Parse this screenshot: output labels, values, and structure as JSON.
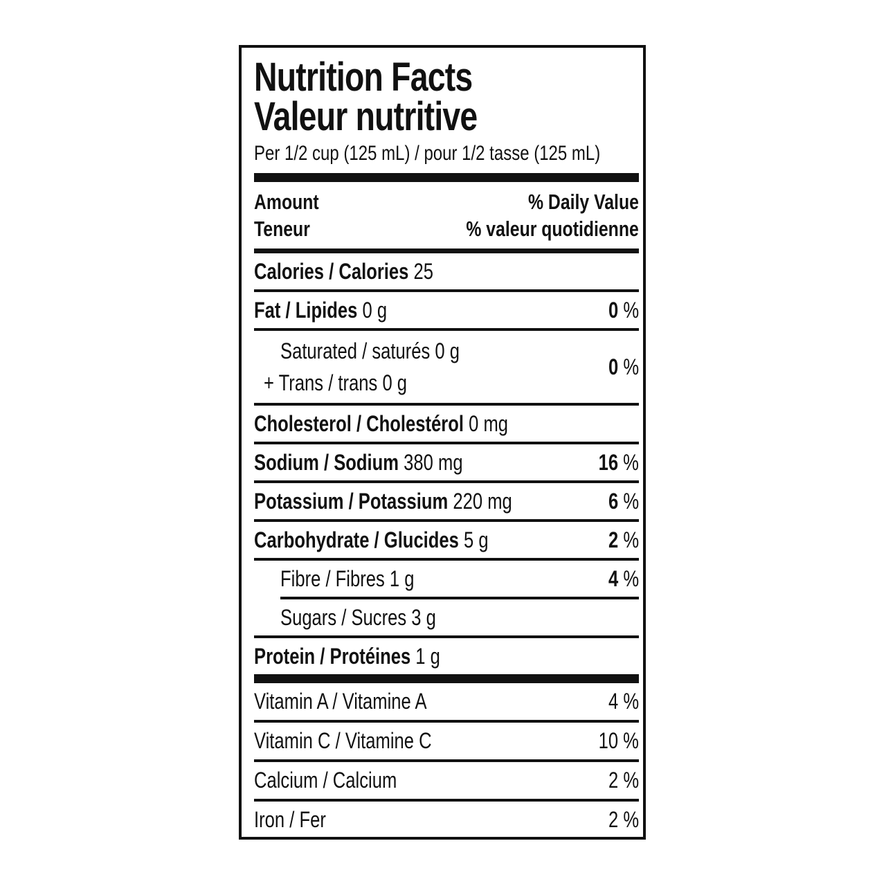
{
  "label": {
    "title_en": "Nutrition Facts",
    "title_fr": "Valeur nutritive",
    "serving_line": "Per 1/2 cup (125 mL) / pour 1/2 tasse (125 mL)",
    "columns": {
      "amount_en": "Amount",
      "amount_fr": "Teneur",
      "daily_value_en": "% Daily Value",
      "daily_value_fr": "% valeur quotidienne"
    },
    "percent_sign": "%",
    "nutrients": [
      {
        "name": "Calories / Calories",
        "amount": "25",
        "bold": true,
        "indent": false,
        "pct": null,
        "sep_after": "thin"
      },
      {
        "name": "Fat / Lipides",
        "amount": "0 g",
        "bold": true,
        "indent": false,
        "pct": "0",
        "pct_bold": true,
        "sep_after": "thin"
      },
      {
        "lines": [
          "Saturated / saturés 0 g",
          "+ Trans / trans 0 g"
        ],
        "bold": false,
        "indent": true,
        "pct": "0",
        "pct_bold": true,
        "sep_after": "thin"
      },
      {
        "name": "Cholesterol / Cholestérol",
        "amount": "0 mg",
        "bold": true,
        "indent": false,
        "pct": null,
        "sep_after": "thin"
      },
      {
        "name": "Sodium / Sodium",
        "amount": "380 mg",
        "bold": true,
        "indent": false,
        "pct": "16",
        "pct_bold": true,
        "sep_after": "thin"
      },
      {
        "name": "Potassium / Potassium",
        "amount": "220 mg",
        "bold": true,
        "indent": false,
        "pct": "6",
        "pct_bold": true,
        "sep_after": "thin"
      },
      {
        "name": "Carbohydrate / Glucides",
        "amount": "5 g",
        "bold": true,
        "indent": false,
        "pct": "2",
        "pct_bold": true,
        "sep_after": "thin"
      },
      {
        "name": "Fibre / Fibres",
        "amount": "1 g",
        "bold": false,
        "indent": true,
        "pct": "4",
        "pct_bold": true,
        "sep_after": "thin-indent"
      },
      {
        "name": "Sugars / Sucres",
        "amount": "3 g",
        "bold": false,
        "indent": true,
        "pct": null,
        "sep_after": "thin"
      },
      {
        "name": "Protein / Protéines",
        "amount": "1 g",
        "bold": true,
        "indent": false,
        "pct": null,
        "sep_after": "thick"
      }
    ],
    "micronutrients": [
      {
        "name": "Vitamin A / Vitamine A",
        "pct": "4"
      },
      {
        "name": "Vitamin C / Vitamine C",
        "pct": "10"
      },
      {
        "name": "Calcium / Calcium",
        "pct": "2"
      },
      {
        "name": "Iron / Fer",
        "pct": "2"
      }
    ]
  }
}
